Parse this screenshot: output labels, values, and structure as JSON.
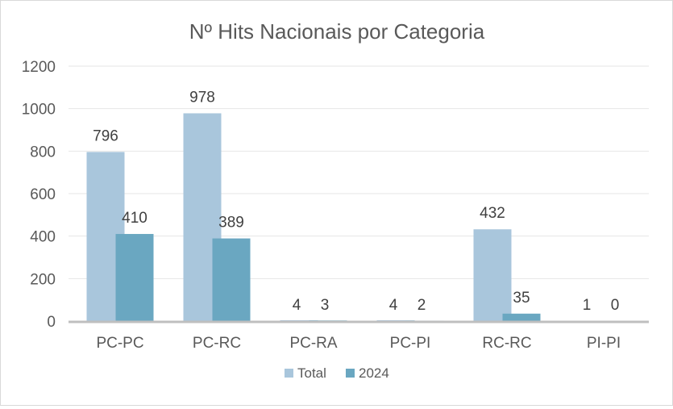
{
  "chart_data": {
    "type": "bar",
    "title": "Nº Hits Nacionais por Categoria",
    "xlabel": "",
    "ylabel": "",
    "ylim": [
      0,
      1200
    ],
    "yticks": [
      0,
      200,
      400,
      600,
      800,
      1000,
      1200
    ],
    "categories": [
      "PC-PC",
      "PC-RC",
      "PC-RA",
      "PC-PI",
      "RC-RC",
      "PI-PI"
    ],
    "series": [
      {
        "name": "Total",
        "values": [
          796,
          978,
          4,
          4,
          432,
          1
        ],
        "color": "#a9c6dc"
      },
      {
        "name": "2024",
        "values": [
          410,
          389,
          3,
          2,
          35,
          0
        ],
        "color": "#6aa7c1"
      }
    ],
    "grid": true,
    "legend": "bottom"
  }
}
